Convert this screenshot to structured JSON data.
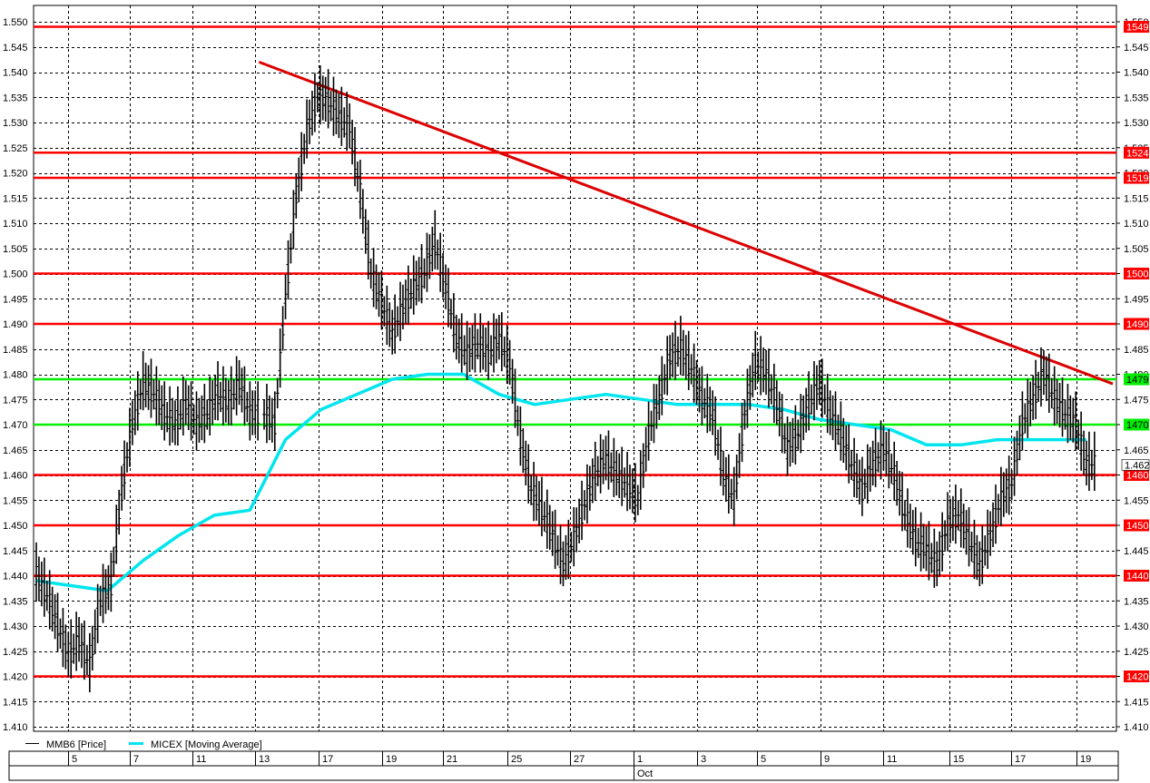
{
  "chart_data": {
    "type": "line",
    "title": "",
    "ylim": [
      1.41,
      1.55
    ],
    "y_ticks": [
      "1.410",
      "1.415",
      "1.420",
      "1.425",
      "1.430",
      "1.435",
      "1.440",
      "1.445",
      "1.450",
      "1.455",
      "1.460",
      "1.465",
      "1.470",
      "1.475",
      "1.480",
      "1.485",
      "1.490",
      "1.495",
      "1.500",
      "1.505",
      "1.510",
      "1.515",
      "1.520",
      "1.525",
      "1.530",
      "1.535",
      "1.540",
      "1.545",
      "1.550"
    ],
    "x_day_labels": [
      "5",
      "7",
      "11",
      "13",
      "17",
      "19",
      "21",
      "25",
      "27",
      "1",
      "3",
      "5",
      "9",
      "11",
      "15",
      "17",
      "19"
    ],
    "x_month_label": "Oct",
    "legend": [
      {
        "name": "MMB6 [Price]",
        "color": "#000000"
      },
      {
        "name": "MICEX [Moving Average]",
        "color": "#00e5ee"
      }
    ],
    "last_price_label": "1.462",
    "last_price_value": 1.462,
    "horizontal_levels": [
      {
        "value": 1.549,
        "label": "1549",
        "color": "#ff0000"
      },
      {
        "value": 1.524,
        "label": "1524",
        "color": "#ff0000"
      },
      {
        "value": 1.519,
        "label": "1519",
        "color": "#ff0000"
      },
      {
        "value": 1.5,
        "label": "1500",
        "color": "#ff0000"
      },
      {
        "value": 1.49,
        "label": "1490",
        "color": "#ff0000"
      },
      {
        "value": 1.479,
        "label": "1479",
        "color": "#00ee00"
      },
      {
        "value": 1.47,
        "label": "1470",
        "color": "#00ee00"
      },
      {
        "value": 1.46,
        "label": "1460",
        "color": "#ff0000"
      },
      {
        "value": 1.45,
        "label": "1450",
        "color": "#ff0000"
      },
      {
        "value": 1.44,
        "label": "1440",
        "color": "#ff0000"
      },
      {
        "value": 1.42,
        "label": "1420",
        "color": "#ff0000"
      }
    ],
    "trendline": {
      "from": {
        "x": 7.02,
        "y": 1.542
      },
      "to": {
        "x": 29.8,
        "y": 1.479
      },
      "color": "#dd0000"
    },
    "series": [
      {
        "name": "MMB6 [Price]",
        "style": "ohlc-bars",
        "color": "#000000",
        "x": [
          0,
          0.3,
          0.6,
          0.9,
          1.2,
          1.5,
          1.8,
          2.1,
          2.4,
          2.7,
          3.0,
          3.3,
          3.6,
          3.9,
          4.2,
          4.5,
          4.8,
          5.1,
          5.4,
          5.7,
          6.0,
          6.4,
          6.7,
          7.0,
          7.3,
          7.6,
          7.9,
          8.2,
          8.5,
          8.8,
          9.1,
          9.4,
          9.7,
          10.0,
          10.3,
          10.6,
          10.9,
          11.2,
          11.5,
          11.8,
          12.1,
          12.4,
          12.7,
          13.0,
          13.3,
          13.6,
          13.9,
          14.2,
          14.5,
          14.8,
          15.1,
          15.4,
          15.7,
          16.0,
          16.3,
          16.6,
          16.9,
          17.2,
          17.5,
          17.8,
          18.1,
          18.4,
          18.7,
          19.0,
          19.3,
          19.6,
          19.9,
          20.2,
          20.5,
          20.8,
          21.1,
          21.4,
          21.7,
          22.0,
          22.3,
          22.6,
          22.9,
          23.2,
          23.5,
          23.8,
          24.1,
          24.4,
          24.7,
          25.0,
          25.3,
          25.6,
          25.9,
          26.2,
          26.5,
          26.8,
          27.1,
          27.4,
          27.7,
          28.0,
          28.3,
          28.6,
          28.9,
          29.2,
          29.5
        ],
        "values": [
          1.44,
          1.436,
          1.43,
          1.424,
          1.427,
          1.422,
          1.435,
          1.438,
          1.457,
          1.47,
          1.478,
          1.476,
          1.472,
          1.47,
          1.474,
          1.47,
          1.472,
          1.476,
          1.474,
          1.478,
          1.472,
          1.472,
          1.47,
          1.495,
          1.515,
          1.528,
          1.535,
          1.534,
          1.531,
          1.529,
          1.516,
          1.5,
          1.494,
          1.488,
          1.493,
          1.497,
          1.5,
          1.506,
          1.497,
          1.487,
          1.484,
          1.486,
          1.484,
          1.487,
          1.482,
          1.467,
          1.457,
          1.453,
          1.448,
          1.442,
          1.447,
          1.454,
          1.46,
          1.463,
          1.46,
          1.458,
          1.455,
          1.468,
          1.475,
          1.483,
          1.485,
          1.481,
          1.475,
          1.472,
          1.46,
          1.455,
          1.472,
          1.482,
          1.48,
          1.474,
          1.465,
          1.468,
          1.474,
          1.478,
          1.472,
          1.468,
          1.462,
          1.457,
          1.462,
          1.465,
          1.46,
          1.452,
          1.447,
          1.445,
          1.442,
          1.45,
          1.452,
          1.447,
          1.442,
          1.448,
          1.455,
          1.458,
          1.47,
          1.475,
          1.48,
          1.475,
          1.472,
          1.47,
          1.462
        ]
      },
      {
        "name": "MICEX [Moving Average]",
        "style": "line",
        "color": "#00e5ee",
        "x": [
          0,
          1,
          2,
          3,
          4,
          5,
          6,
          7,
          8,
          9,
          10,
          11,
          12,
          13,
          14,
          15,
          16,
          17,
          18,
          19,
          20,
          21,
          22,
          23,
          24,
          25,
          26,
          27,
          28,
          29.5
        ],
        "values": [
          1.439,
          1.438,
          1.437,
          1.443,
          1.448,
          1.452,
          1.453,
          1.467,
          1.473,
          1.476,
          1.479,
          1.48,
          1.48,
          1.476,
          1.474,
          1.475,
          1.476,
          1.475,
          1.474,
          1.474,
          1.474,
          1.473,
          1.471,
          1.47,
          1.469,
          1.466,
          1.466,
          1.467,
          1.467,
          1.467
        ]
      }
    ]
  }
}
